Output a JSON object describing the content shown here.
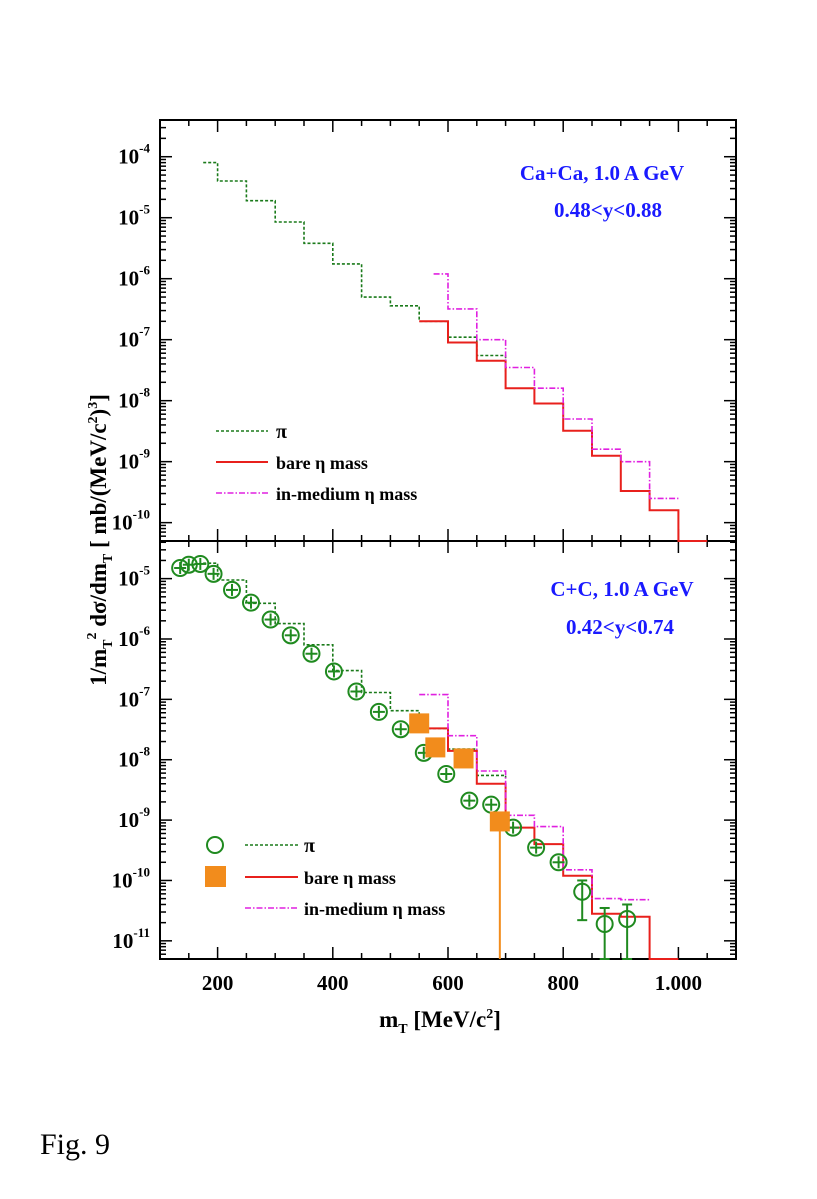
{
  "caption": "Fig. 9",
  "colors": {
    "pi": "#1a7a1a",
    "bare": "#e8201c",
    "medium": "#e020e0",
    "data_pi": "#1f8a1f",
    "data_eta": "#f28c1c",
    "label": "#1a1aff"
  },
  "chart_data": [
    {
      "type": "line",
      "panel": "top",
      "title": "Ca+Ca, 1.0 A GeV",
      "subtitle": "0.48<y<0.88",
      "xlabel": "m_T [MeV/c^2]",
      "ylabel": "1/m_T^2 dσ/dm_T [ mb/(MeV/c^2)^3 ]",
      "xlim": [
        100,
        1100
      ],
      "ylim": [
        5e-11,
        0.0004
      ],
      "yscale": "log",
      "yticks": [
        {
          "exp": "-4",
          "v": 0.0001
        },
        {
          "exp": "-5",
          "v": 1e-05
        },
        {
          "exp": "-6",
          "v": 1e-06
        },
        {
          "exp": "-7",
          "v": 1e-07
        },
        {
          "exp": "-8",
          "v": 1e-08
        },
        {
          "exp": "-9",
          "v": 1e-09
        },
        {
          "exp": "-10",
          "v": 1e-10
        }
      ],
      "legend": [
        {
          "name": "π",
          "series": "pi"
        },
        {
          "name": "bare η mass",
          "series": "bare"
        },
        {
          "name": "in-medium η mass",
          "series": "medium"
        }
      ],
      "series": [
        {
          "name": "pi",
          "style": "dashed",
          "edges": [
            175,
            200,
            250,
            300,
            350,
            400,
            450,
            500,
            550,
            600,
            650,
            700
          ],
          "values": [
            8e-05,
            4e-05,
            1.9e-05,
            8.5e-06,
            3.8e-06,
            1.75e-06,
            5e-07,
            3.6e-07,
            2e-07,
            1.1e-07,
            5.5e-08,
            3e-08
          ]
        },
        {
          "name": "bare",
          "style": "solid",
          "edges": [
            550,
            600,
            650,
            700,
            750,
            800,
            850,
            900,
            950,
            1000,
            1050
          ],
          "values": [
            2e-07,
            9e-08,
            4.5e-08,
            1.6e-08,
            9e-09,
            3.2e-09,
            1.25e-09,
            3.3e-10,
            1.6e-10,
            5e-11
          ]
        },
        {
          "name": "medium",
          "style": "dashdot",
          "edges": [
            575,
            600,
            650,
            700,
            750,
            800,
            850,
            900,
            950,
            1000
          ],
          "values": [
            1.2e-06,
            3.2e-07,
            1e-07,
            3.5e-08,
            1.6e-08,
            5e-09,
            1.6e-09,
            1e-09,
            2.5e-10
          ]
        }
      ]
    },
    {
      "type": "scatter",
      "panel": "bottom",
      "title": "C+C, 1.0 A GeV",
      "subtitle": "0.42<y<0.74",
      "xlabel": "m_T [MeV/c^2]",
      "ylabel": "1/m_T^2 dσ/dm_T [ mb/(MeV/c^2)^3 ]",
      "xlim": [
        100,
        1100
      ],
      "ylim": [
        5e-12,
        4.2e-05
      ],
      "yscale": "log",
      "xticks": [
        "200",
        "400",
        "600",
        "800",
        "1.000"
      ],
      "xtick_values": [
        200,
        400,
        600,
        800,
        1000
      ],
      "yticks": [
        {
          "exp": "-5",
          "v": 1e-05
        },
        {
          "exp": "-6",
          "v": 1e-06
        },
        {
          "exp": "-7",
          "v": 1e-07
        },
        {
          "exp": "-8",
          "v": 1e-08
        },
        {
          "exp": "-9",
          "v": 1e-09
        },
        {
          "exp": "-10",
          "v": 1e-10
        },
        {
          "exp": "-11",
          "v": 1e-11
        }
      ],
      "legend": [
        {
          "name": "π",
          "series": "pi",
          "marker": "open-circle"
        },
        {
          "name": "bare η mass",
          "series": "bare",
          "marker": "filled-square"
        },
        {
          "name": "in-medium η mass",
          "series": "medium"
        }
      ],
      "series": [
        {
          "name": "pi",
          "style": "dashed",
          "edges": [
            175,
            200,
            250,
            300,
            350,
            400,
            450,
            500,
            550,
            600,
            650,
            700
          ],
          "values": [
            1.8e-05,
            9.5e-06,
            3.9e-06,
            1.8e-06,
            8e-07,
            3e-07,
            1.3e-07,
            6.5e-08,
            3.3e-08,
            1.5e-08,
            5.5e-09,
            5e-09
          ]
        },
        {
          "name": "bare",
          "style": "solid",
          "edges": [
            550,
            600,
            650,
            700,
            750,
            800,
            850,
            900,
            950,
            1000
          ],
          "values": [
            3.3e-08,
            1.4e-08,
            4e-09,
            7.5e-10,
            4e-10,
            1.2e-10,
            2.8e-11,
            2.5e-11,
            5e-12
          ]
        },
        {
          "name": "medium",
          "style": "dashdot",
          "edges": [
            550,
            575,
            600,
            650,
            700,
            750,
            800,
            850,
            900,
            950
          ],
          "values": [
            1.2e-07,
            1.2e-07,
            2.5e-08,
            6.5e-09,
            1.2e-09,
            7.8e-10,
            1.5e-10,
            5e-11,
            4.8e-11
          ]
        },
        {
          "name": "pi data",
          "style": "markers",
          "points": [
            {
              "x": 135,
              "y": 1.5e-05
            },
            {
              "x": 150,
              "y": 1.7e-05
            },
            {
              "x": 170,
              "y": 1.75e-05
            },
            {
              "x": 193,
              "y": 1.2e-05
            },
            {
              "x": 225,
              "y": 6.5e-06
            },
            {
              "x": 258,
              "y": 4e-06
            },
            {
              "x": 292,
              "y": 2.1e-06
            },
            {
              "x": 327,
              "y": 1.15e-06
            },
            {
              "x": 363,
              "y": 5.7e-07
            },
            {
              "x": 402,
              "y": 2.9e-07
            },
            {
              "x": 441,
              "y": 1.35e-07
            },
            {
              "x": 480,
              "y": 6.2e-08
            },
            {
              "x": 518,
              "y": 3.2e-08
            },
            {
              "x": 558,
              "y": 1.3e-08
            },
            {
              "x": 597,
              "y": 5.8e-09
            },
            {
              "x": 637,
              "y": 2.1e-09
            },
            {
              "x": 675,
              "y": 1.8e-09
            },
            {
              "x": 713,
              "y": 7.5e-10
            },
            {
              "x": 753,
              "y": 3.5e-10
            },
            {
              "x": 792,
              "y": 2e-10
            },
            {
              "x": 833,
              "y": 6.5e-11,
              "err_lo": 2.2e-11,
              "err_hi": 1e-10
            },
            {
              "x": 872,
              "y": 1.9e-11,
              "err_lo": 5e-12,
              "err_hi": 3.5e-11
            },
            {
              "x": 911,
              "y": 2.3e-11,
              "err_lo": 5e-12,
              "err_hi": 4e-11
            }
          ]
        },
        {
          "name": "eta data",
          "style": "markers",
          "points": [
            {
              "x": 550,
              "y": 4e-08
            },
            {
              "x": 578,
              "y": 1.6e-08
            },
            {
              "x": 627,
              "y": 1.05e-08
            },
            {
              "x": 690,
              "y": 9.5e-10,
              "err_lo": 5e-12
            }
          ]
        }
      ]
    }
  ]
}
